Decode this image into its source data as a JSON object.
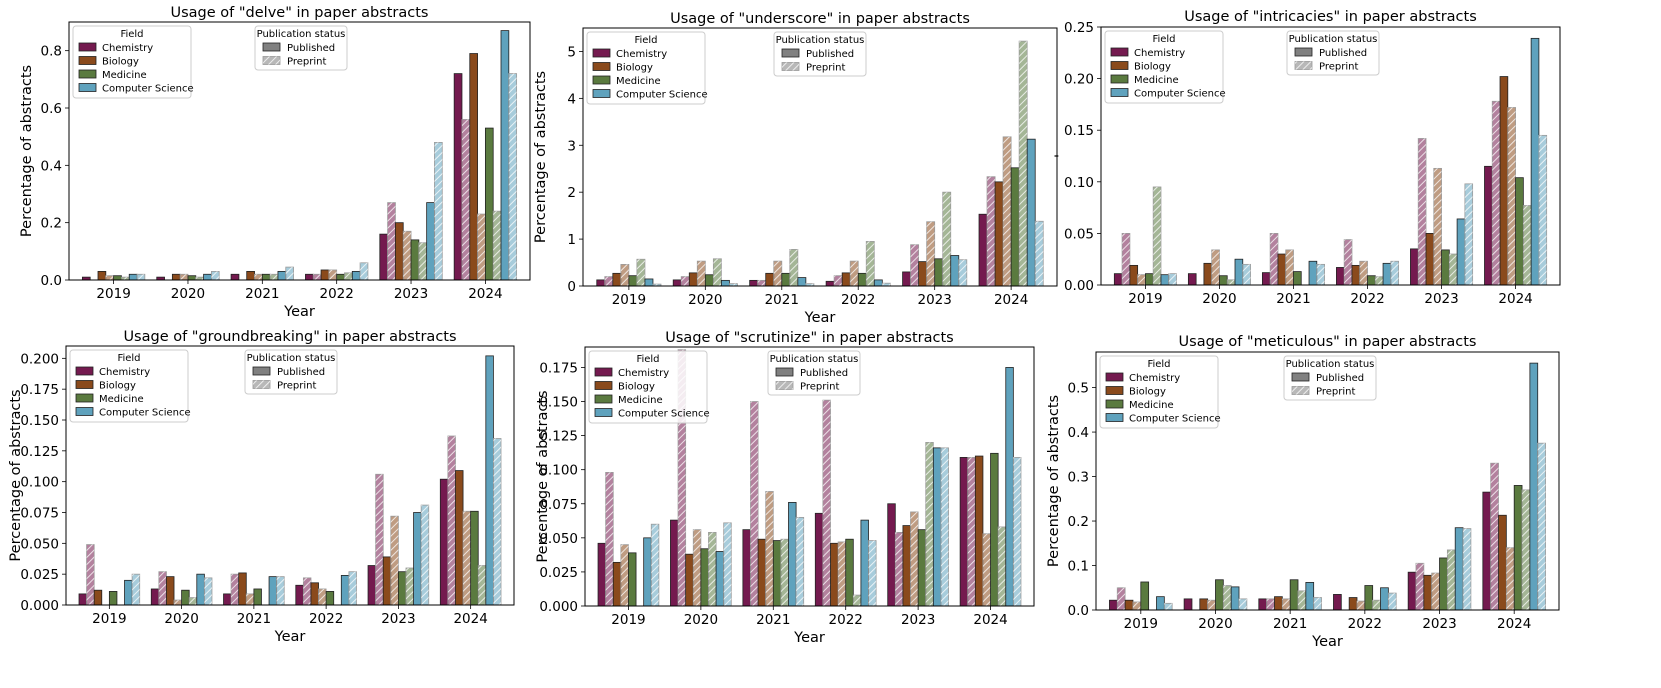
{
  "colors": {
    "Chemistry": "#741a4f",
    "Biology": "#8a4a1c",
    "Medicine": "#5a7a3f",
    "Computer Science": "#5fa2bd",
    "Published": "#808080",
    "Preprint": "#b8b8b8"
  },
  "legend": {
    "field_title": "Field",
    "status_title": "Publication status",
    "published": "Published",
    "preprint": "Preprint"
  },
  "chart_data": [
    {
      "type": "bar",
      "title": "Usage of \"delve\" in paper abstracts",
      "xlabel": "Year",
      "ylabel": "Percentage of abstracts",
      "categories": [
        "2019",
        "2020",
        "2021",
        "2022",
        "2023",
        "2024"
      ],
      "ylim": [
        0,
        0.9
      ],
      "yticks": [
        "0.0",
        "0.2",
        "0.4",
        "0.6",
        "0.8"
      ],
      "ytick_values": [
        0,
        0.2,
        0.4,
        0.6,
        0.8
      ],
      "series": [
        {
          "field": "Chemistry",
          "published": [
            0.01,
            0.01,
            0.02,
            0.02,
            0.16,
            0.72
          ],
          "preprint": [
            0.0,
            0.0,
            0.0,
            0.02,
            0.27,
            0.56
          ]
        },
        {
          "field": "Biology",
          "published": [
            0.03,
            0.02,
            0.03,
            0.035,
            0.2,
            0.79
          ],
          "preprint": [
            0.015,
            0.02,
            0.02,
            0.035,
            0.17,
            0.23
          ]
        },
        {
          "field": "Medicine",
          "published": [
            0.015,
            0.015,
            0.02,
            0.02,
            0.14,
            0.53
          ],
          "preprint": [
            0.01,
            0.01,
            0.02,
            0.025,
            0.13,
            0.24
          ]
        },
        {
          "field": "Computer Science",
          "published": [
            0.02,
            0.02,
            0.03,
            0.03,
            0.27,
            0.87
          ],
          "preprint": [
            0.02,
            0.03,
            0.045,
            0.06,
            0.48,
            0.72
          ]
        }
      ]
    },
    {
      "type": "bar",
      "title": "Usage of \"underscore\" in paper abstracts",
      "xlabel": "Year",
      "ylabel": "Percentage of abstracts",
      "categories": [
        "2019",
        "2020",
        "2021",
        "2022",
        "2023",
        "2024"
      ],
      "ylim": [
        0,
        5.5
      ],
      "yticks": [
        "0",
        "1",
        "2",
        "3",
        "4",
        "5"
      ],
      "ytick_values": [
        0,
        1,
        2,
        3,
        4,
        5
      ],
      "series": [
        {
          "field": "Chemistry",
          "published": [
            0.13,
            0.13,
            0.12,
            0.1,
            0.3,
            1.53
          ],
          "preprint": [
            0.2,
            0.2,
            0.12,
            0.22,
            0.88,
            2.33
          ]
        },
        {
          "field": "Biology",
          "published": [
            0.27,
            0.28,
            0.27,
            0.28,
            0.52,
            2.22
          ],
          "preprint": [
            0.46,
            0.53,
            0.53,
            0.53,
            1.37,
            3.18
          ]
        },
        {
          "field": "Medicine",
          "published": [
            0.22,
            0.24,
            0.27,
            0.27,
            0.58,
            2.52
          ],
          "preprint": [
            0.57,
            0.58,
            0.78,
            0.95,
            2.0,
            5.22
          ]
        },
        {
          "field": "Computer Science",
          "published": [
            0.15,
            0.12,
            0.18,
            0.13,
            0.65,
            3.13
          ],
          "preprint": [
            0.04,
            0.05,
            0.05,
            0.06,
            0.56,
            1.38
          ]
        }
      ]
    },
    {
      "type": "bar",
      "title": "Usage of \"intricacies\" in paper abstracts",
      "xlabel": "",
      "ylabel": "'",
      "categories": [
        "2019",
        "2020",
        "2021",
        "2022",
        "2023",
        "2024"
      ],
      "ylim": [
        0,
        0.25
      ],
      "yticks": [
        "0.00",
        "0.05",
        "0.10",
        "0.15",
        "0.20",
        "0.25"
      ],
      "ytick_values": [
        0,
        0.05,
        0.1,
        0.15,
        0.2,
        0.25
      ],
      "series": [
        {
          "field": "Chemistry",
          "published": [
            0.011,
            0.011,
            0.012,
            0.017,
            0.035,
            0.115
          ],
          "preprint": [
            0.05,
            0.0,
            0.05,
            0.044,
            0.142,
            0.178
          ]
        },
        {
          "field": "Biology",
          "published": [
            0.019,
            0.021,
            0.03,
            0.019,
            0.05,
            0.202
          ],
          "preprint": [
            0.01,
            0.034,
            0.034,
            0.023,
            0.113,
            0.172
          ]
        },
        {
          "field": "Medicine",
          "published": [
            0.011,
            0.009,
            0.013,
            0.009,
            0.034,
            0.104
          ],
          "preprint": [
            0.095,
            0.005,
            0.0,
            0.008,
            0.03,
            0.077
          ]
        },
        {
          "field": "Computer Science",
          "published": [
            0.01,
            0.025,
            0.023,
            0.021,
            0.064,
            0.239
          ],
          "preprint": [
            0.011,
            0.02,
            0.02,
            0.023,
            0.098,
            0.145
          ]
        }
      ]
    },
    {
      "type": "bar",
      "title": "Usage of \"groundbreaking\" in paper abstracts",
      "xlabel": "Year",
      "ylabel": "Percentage of abstracts",
      "categories": [
        "2019",
        "2020",
        "2021",
        "2022",
        "2023",
        "2024"
      ],
      "ylim": [
        0,
        0.21
      ],
      "yticks": [
        "0.000",
        "0.025",
        "0.050",
        "0.075",
        "0.100",
        "0.125",
        "0.150",
        "0.175",
        "0.200"
      ],
      "ytick_values": [
        0,
        0.025,
        0.05,
        0.075,
        0.1,
        0.125,
        0.15,
        0.175,
        0.2
      ],
      "series": [
        {
          "field": "Chemistry",
          "published": [
            0.009,
            0.013,
            0.009,
            0.016,
            0.032,
            0.102
          ],
          "preprint": [
            0.049,
            0.027,
            0.025,
            0.022,
            0.106,
            0.137
          ]
        },
        {
          "field": "Biology",
          "published": [
            0.012,
            0.023,
            0.026,
            0.018,
            0.039,
            0.109
          ],
          "preprint": [
            0.0,
            0.004,
            0.009,
            0.013,
            0.072,
            0.076
          ]
        },
        {
          "field": "Medicine",
          "published": [
            0.011,
            0.012,
            0.013,
            0.011,
            0.027,
            0.076
          ],
          "preprint": [
            0.0,
            0.006,
            0.0,
            0.0,
            0.03,
            0.032
          ]
        },
        {
          "field": "Computer Science",
          "published": [
            0.02,
            0.025,
            0.023,
            0.024,
            0.075,
            0.202
          ],
          "preprint": [
            0.025,
            0.022,
            0.023,
            0.027,
            0.081,
            0.135
          ]
        }
      ]
    },
    {
      "type": "bar",
      "title": "Usage of \"scrutinize\" in paper abstracts",
      "xlabel": "Year",
      "ylabel": "Percentage of abstracts",
      "categories": [
        "2019",
        "2020",
        "2021",
        "2022",
        "2023",
        "2024"
      ],
      "ylim": [
        0,
        0.19
      ],
      "yticks": [
        "0.000",
        "0.025",
        "0.050",
        "0.075",
        "0.100",
        "0.125",
        "0.150",
        "0.175"
      ],
      "ytick_values": [
        0,
        0.025,
        0.05,
        0.075,
        0.1,
        0.125,
        0.15,
        0.175
      ],
      "series": [
        {
          "field": "Chemistry",
          "published": [
            0.046,
            0.063,
            0.056,
            0.068,
            0.075,
            0.109
          ],
          "preprint": [
            0.098,
            0.188,
            0.15,
            0.151,
            0.054,
            0.109
          ]
        },
        {
          "field": "Biology",
          "published": [
            0.032,
            0.038,
            0.049,
            0.046,
            0.059,
            0.11
          ],
          "preprint": [
            0.045,
            0.056,
            0.084,
            0.047,
            0.069,
            0.053
          ]
        },
        {
          "field": "Medicine",
          "published": [
            0.039,
            0.042,
            0.048,
            0.049,
            0.056,
            0.112
          ],
          "preprint": [
            0.0,
            0.054,
            0.049,
            0.008,
            0.12,
            0.058
          ]
        },
        {
          "field": "Computer Science",
          "published": [
            0.05,
            0.04,
            0.076,
            0.063,
            0.116,
            0.175
          ],
          "preprint": [
            0.06,
            0.061,
            0.065,
            0.048,
            0.116,
            0.109
          ]
        }
      ]
    },
    {
      "type": "bar",
      "title": "Usage of \"meticulous\" in paper abstracts",
      "xlabel": "Year",
      "ylabel": "Percentage of abstracts",
      "categories": [
        "2019",
        "2020",
        "2021",
        "2022",
        "2023",
        "2024"
      ],
      "ylim": [
        0,
        0.58
      ],
      "yticks": [
        "0.0",
        "0.1",
        "0.2",
        "0.3",
        "0.4",
        "0.5"
      ],
      "ytick_values": [
        0,
        0.1,
        0.2,
        0.3,
        0.4,
        0.5
      ],
      "series": [
        {
          "field": "Chemistry",
          "published": [
            0.022,
            0.025,
            0.025,
            0.035,
            0.085,
            0.265
          ],
          "preprint": [
            0.05,
            0.0,
            0.025,
            0.0,
            0.105,
            0.33
          ]
        },
        {
          "field": "Biology",
          "published": [
            0.022,
            0.025,
            0.03,
            0.028,
            0.078,
            0.213
          ],
          "preprint": [
            0.018,
            0.022,
            0.025,
            0.02,
            0.083,
            0.14
          ]
        },
        {
          "field": "Medicine",
          "published": [
            0.063,
            0.068,
            0.068,
            0.055,
            0.117,
            0.28
          ],
          "preprint": [
            0.0,
            0.055,
            0.043,
            0.022,
            0.135,
            0.27
          ]
        },
        {
          "field": "Computer Science",
          "published": [
            0.03,
            0.052,
            0.062,
            0.05,
            0.185,
            0.555
          ],
          "preprint": [
            0.015,
            0.025,
            0.028,
            0.038,
            0.183,
            0.375
          ]
        }
      ]
    }
  ]
}
